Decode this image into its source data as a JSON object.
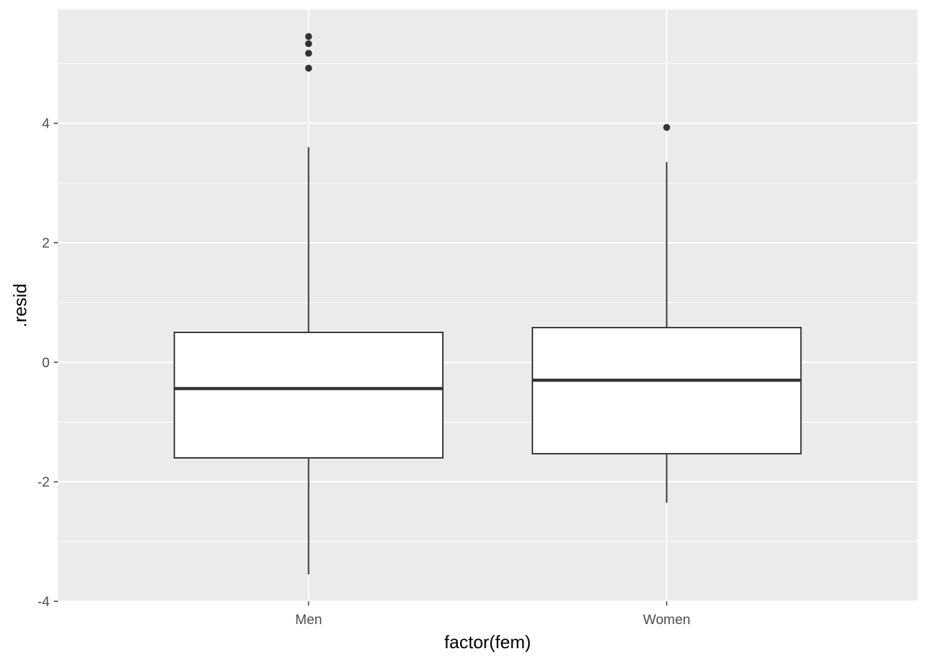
{
  "chart_data": {
    "type": "boxplot",
    "title": "",
    "xlabel": "factor(fem)",
    "ylabel": ".resid",
    "categories": [
      "Men",
      "Women"
    ],
    "ylim": [
      -4,
      5.9
    ],
    "y_ticks": [
      -4,
      -2,
      0,
      2,
      4
    ],
    "y_tick_labels": [
      "-4",
      "-2",
      "0",
      "2",
      "4"
    ],
    "grid": true,
    "legend": "none",
    "boxes": [
      {
        "category": "Men",
        "lower_whisker": -3.55,
        "q1": -1.6,
        "median": -0.44,
        "q3": 0.5,
        "upper_whisker": 3.6,
        "outliers": [
          4.92,
          5.17,
          5.33,
          5.45
        ]
      },
      {
        "category": "Women",
        "lower_whisker": -2.35,
        "q1": -1.53,
        "median": -0.3,
        "q3": 0.58,
        "upper_whisker": 3.35,
        "outliers": [
          3.93
        ]
      }
    ],
    "colors": {
      "panel": "#ebebeb",
      "grid": "#ffffff",
      "box_fill": "#ffffff",
      "box_stroke": "#333333",
      "tick_text": "#4d4d4d"
    }
  }
}
